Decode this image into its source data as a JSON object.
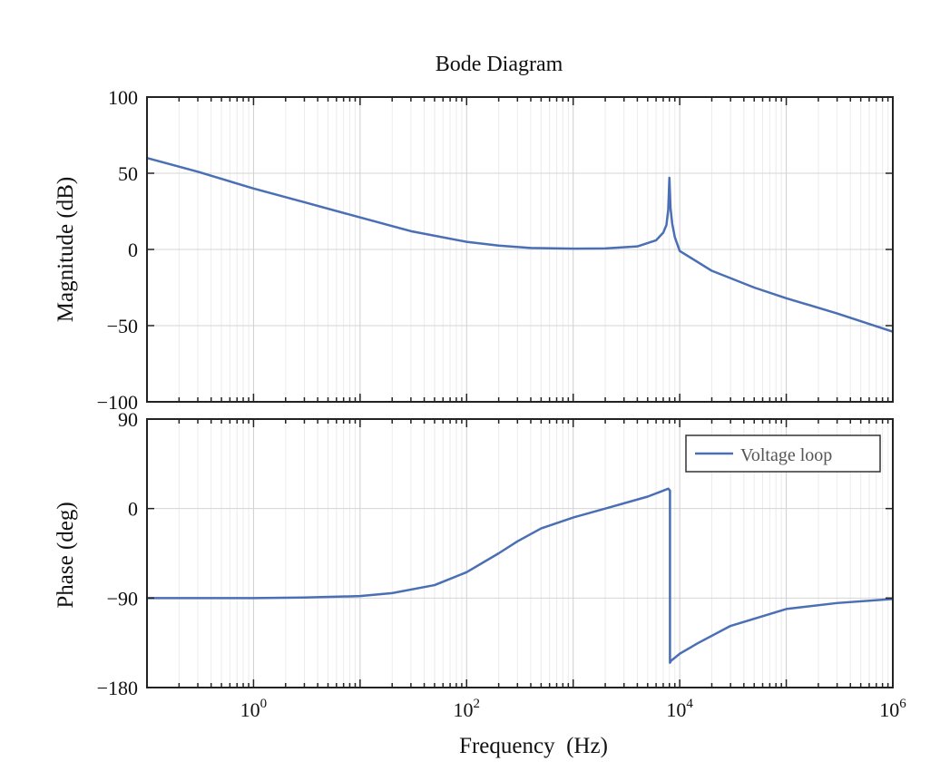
{
  "colors": {
    "line": "#4a6fb5",
    "axis": "#222222",
    "grid": "#d9d9d9",
    "background": "#ffffff"
  },
  "chart_data": [
    {
      "type": "line",
      "title": "Bode Diagram",
      "xlabel": "",
      "ylabel": "Magnitude (dB)",
      "xscale": "log",
      "xlim": [
        0.1,
        1000000
      ],
      "ylim": [
        -100,
        100
      ],
      "yticks": [
        "100",
        "50",
        "0",
        "−50",
        "−100"
      ],
      "grid": true,
      "series": [
        {
          "x": [
            0.1,
            0.3,
            1,
            3,
            10,
            30,
            100,
            200,
            400,
            1000,
            2000,
            4000,
            6000,
            7000,
            7500,
            7800,
            8000,
            8200,
            8500,
            9000,
            10000,
            20000,
            50000,
            100000,
            300000,
            1000000
          ],
          "y": [
            60,
            51,
            40,
            31,
            21,
            12,
            5,
            2.5,
            1,
            0.5,
            0.7,
            2,
            6,
            11,
            16,
            26,
            47,
            27,
            17,
            8,
            -1,
            -14,
            -25,
            -32,
            -42,
            -54
          ]
        }
      ]
    },
    {
      "type": "line",
      "title": "",
      "xlabel": "Frequency  (Hz)",
      "ylabel": "Phase (deg)",
      "xscale": "log",
      "xlim": [
        0.1,
        1000000
      ],
      "ylim": [
        -180,
        90
      ],
      "yticks": [
        "90",
        "0",
        "−90",
        "−180"
      ],
      "xticks": [
        {
          "base": "10",
          "exp": "0",
          "value": 1
        },
        {
          "base": "10",
          "exp": "2",
          "value": 100
        },
        {
          "base": "10",
          "exp": "4",
          "value": 10000
        },
        {
          "base": "10",
          "exp": "6",
          "value": 1000000
        }
      ],
      "grid": true,
      "legend": {
        "position": "top-right",
        "entries": [
          "Voltage loop"
        ]
      },
      "series": [
        {
          "name": "Voltage loop",
          "x": [
            0.1,
            1,
            3,
            10,
            20,
            50,
            100,
            200,
            300,
            500,
            1000,
            2000,
            5000,
            7000,
            7800,
            8100,
            8100.1,
            8300,
            9000,
            10000,
            15000,
            30000,
            100000,
            300000,
            1000000
          ],
          "y": [
            -90,
            -90,
            -89.5,
            -88,
            -85,
            -77,
            -64,
            -45,
            -33,
            -20,
            -9,
            0,
            12,
            18,
            20,
            18,
            -155,
            -153,
            -150,
            -146,
            -135,
            -118,
            -101,
            -95,
            -91
          ]
        }
      ]
    }
  ]
}
